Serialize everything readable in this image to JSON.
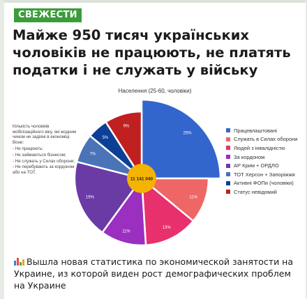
{
  "post": {
    "channel_badge": "СВЕЖЕСТИ",
    "headline": "Майже 950 тисяч українських чоловіків не працюють, не платять податки і не служать у війську",
    "caption": "Вышла новая статистика по экономической занятости на Украине, из которой виден рост демографических проблем на Украине",
    "caption_icon": "bar-chart-icon"
  },
  "colors": {
    "badge": "#3a9d3a",
    "center_circle": "#f5b301"
  },
  "note": {
    "title": "Кількість чоловіків мобілізаційного віку, які жодним чином не задіяні в економіці. Вони:",
    "items": [
      "Не працюють;",
      "Не займаються бізнесом;",
      "Не служать у Силах оборони;",
      "Не перебувають за кордоном або на ТОТ."
    ]
  },
  "chart_data": {
    "type": "pie",
    "title": "Населення (25-60, чоловіки)",
    "center_label": "11 141 040",
    "legend_placement": "right",
    "slices": [
      {
        "label": "Працевлаштовані",
        "percent_label": "25%",
        "value": 25,
        "color": "#3366cc"
      },
      {
        "label": "Служать в Силах оборони",
        "percent_label": "11%",
        "value": 11,
        "color": "#ee6666"
      },
      {
        "label": "Людей з інвалідністю",
        "percent_label": "13%",
        "value": 13,
        "color": "#e8306c"
      },
      {
        "label": "За кордоном",
        "percent_label": "11%",
        "value": 11,
        "color": "#9a2fc0"
      },
      {
        "label": "АР Крим + ОРДЛО",
        "percent_label": "19%",
        "value": 19,
        "color": "#6a3aa5"
      },
      {
        "label": "ТОТ Херсон + Запоріжжя",
        "percent_label": "7%",
        "value": 7,
        "color": "#4a73b8"
      },
      {
        "label": "Активні ФОПи (чоловіки)",
        "percent_label": "5%",
        "value": 5,
        "color": "#0e3f96"
      },
      {
        "label": "Статус невідомий",
        "percent_label": "9%",
        "value": 9,
        "color": "#c02020"
      }
    ]
  }
}
